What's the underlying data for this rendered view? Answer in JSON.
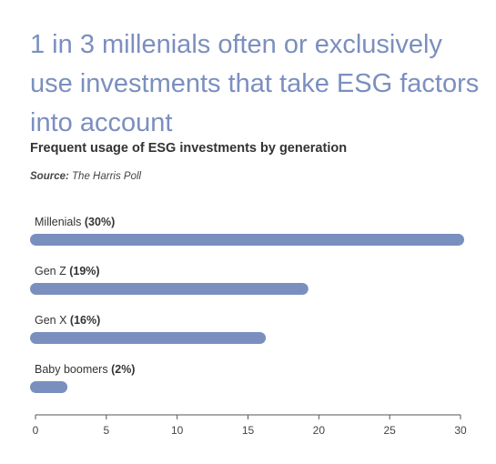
{
  "headline": "1 in 3 millenials often or exclusively use investments that take ESG factors into account",
  "chart_data": {
    "type": "bar",
    "orientation": "horizontal",
    "title": "Frequent usage of ESG investments by generation",
    "source_label": "Source:",
    "source_value": "The Harris Poll",
    "categories": [
      "Millenials",
      "Gen Z",
      "Gen X",
      "Baby boomers"
    ],
    "category_labels": [
      "(30%)",
      "(19%)",
      "(16%)",
      "(2%)"
    ],
    "values": [
      30,
      19,
      16,
      2
    ],
    "xlim": [
      0,
      30
    ],
    "xticks": [
      0,
      5,
      10,
      15,
      20,
      25,
      30
    ],
    "bar_color": "#7b8fbf",
    "grid": false
  }
}
